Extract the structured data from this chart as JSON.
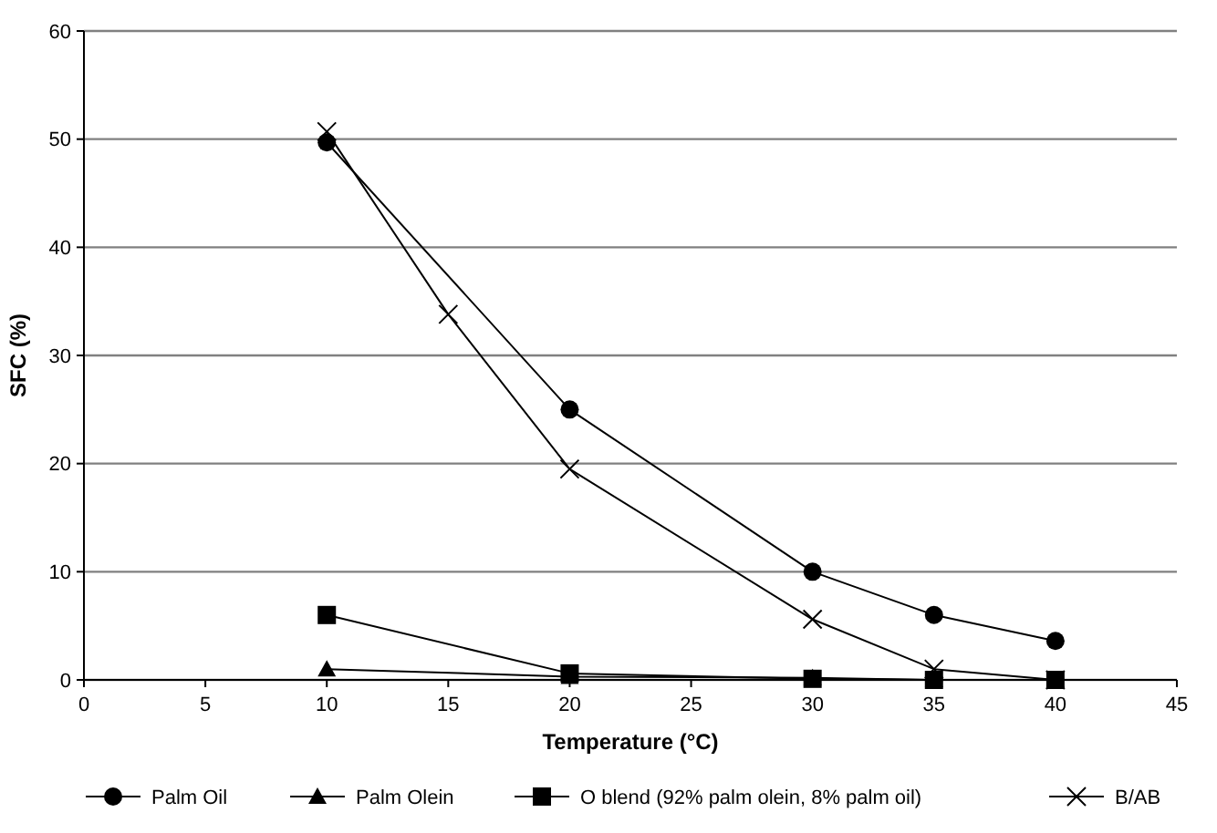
{
  "chart_data": {
    "type": "line",
    "xlabel": "Temperature (°C)",
    "ylabel": "SFC (%)",
    "xlim": [
      0,
      45
    ],
    "xticks": [
      0,
      5,
      10,
      15,
      20,
      25,
      30,
      35,
      40,
      45
    ],
    "ylim": [
      0,
      60
    ],
    "yticks": [
      0,
      10,
      20,
      30,
      40,
      50,
      60
    ],
    "grid": "y",
    "legend": "bottom",
    "line_style": "solid",
    "series": [
      {
        "name": "Palm Oil",
        "color": "#000000",
        "marker": "circle",
        "x": [
          10,
          20,
          30,
          35,
          40
        ],
        "values": [
          49.7,
          25,
          10,
          6,
          3.6
        ]
      },
      {
        "name": "Palm Olein",
        "color": "#000000",
        "marker": "triangle",
        "x": [
          10,
          20,
          30,
          35,
          40
        ],
        "values": [
          1,
          0.3,
          0.2,
          0,
          0
        ]
      },
      {
        "name": "O blend (92% palm olein, 8% palm oil)",
        "color": "#000000",
        "marker": "square",
        "x": [
          10,
          20,
          30,
          35,
          40
        ],
        "values": [
          6,
          0.6,
          0.1,
          0,
          0
        ]
      },
      {
        "name": "B/AB",
        "color": "#000000",
        "marker": "cross",
        "x": [
          10,
          15,
          20,
          30,
          35,
          40
        ],
        "values": [
          50.7,
          33.8,
          19.5,
          5.6,
          1,
          0
        ]
      }
    ]
  }
}
